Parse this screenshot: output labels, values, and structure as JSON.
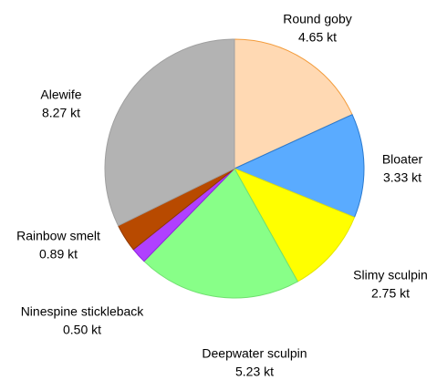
{
  "chart_data": {
    "type": "pie",
    "categories": [
      "Round goby",
      "Bloater",
      "Slimy sculpin",
      "Deepwater sculpin",
      "Ninespine stickleback",
      "Rainbow smelt",
      "Alewife"
    ],
    "values": [
      4.65,
      3.33,
      2.75,
      5.23,
      0.5,
      0.89,
      8.27
    ],
    "value_labels": [
      "4.65 kt",
      "3.33 kt",
      "2.75 kt",
      "5.23 kt",
      "0.50 kt",
      "0.89 kt",
      "8.27 kt"
    ],
    "colors": [
      "#ffd9b3",
      "#5aabff",
      "#ffff00",
      "#88ff88",
      "#b040ff",
      "#b84a00",
      "#b3b3b3"
    ]
  }
}
